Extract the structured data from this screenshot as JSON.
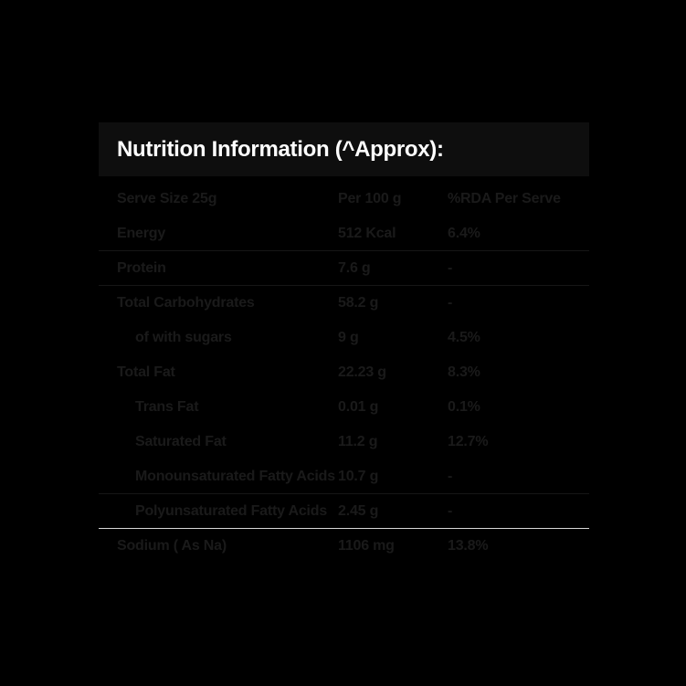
{
  "title": "Nutrition Information (^Approx):",
  "columns": {
    "serve": "Serve Size 25g",
    "per100": "Per 100 g",
    "rda": "%RDA Per Serve"
  },
  "rows": [
    {
      "label": "Energy",
      "per100": "512 Kcal",
      "rda": "6.4%",
      "indent": false,
      "divider": "dark"
    },
    {
      "label": "Protein",
      "per100": "7.6 g",
      "rda": "-",
      "indent": false,
      "divider": "dark"
    },
    {
      "label": "Total Carbohydrates",
      "per100": "58.2 g",
      "rda": "-",
      "indent": false,
      "divider": "none"
    },
    {
      "label": "of with sugars",
      "per100": "9 g",
      "rda": "4.5%",
      "indent": true,
      "divider": "none"
    },
    {
      "label": "Total Fat",
      "per100": "22.23 g",
      "rda": "8.3%",
      "indent": false,
      "divider": "none"
    },
    {
      "label": "Trans Fat",
      "per100": "0.01 g",
      "rda": "0.1%",
      "indent": true,
      "divider": "none"
    },
    {
      "label": "Saturated Fat",
      "per100": "11.2 g",
      "rda": "12.7%",
      "indent": true,
      "divider": "none"
    },
    {
      "label": "Monounsaturated Fatty Acids",
      "per100": "10.7 g",
      "rda": "-",
      "indent": true,
      "divider": "dark"
    },
    {
      "label": "Polyunsaturated Fatty Acids",
      "per100": "2.45 g",
      "rda": "-",
      "indent": true,
      "divider": "light"
    },
    {
      "label": "Sodium ( As Na)",
      "per100": "1106 mg",
      "rda": "13.8%",
      "indent": false,
      "divider": "none"
    }
  ],
  "colors": {
    "page_bg": "#000000",
    "header_bg": "#0e0e0e",
    "title_color": "#ffffff",
    "text_color": "#1a1a1a",
    "divider_dark": "#161616",
    "divider_light": "#d6d6d6"
  }
}
